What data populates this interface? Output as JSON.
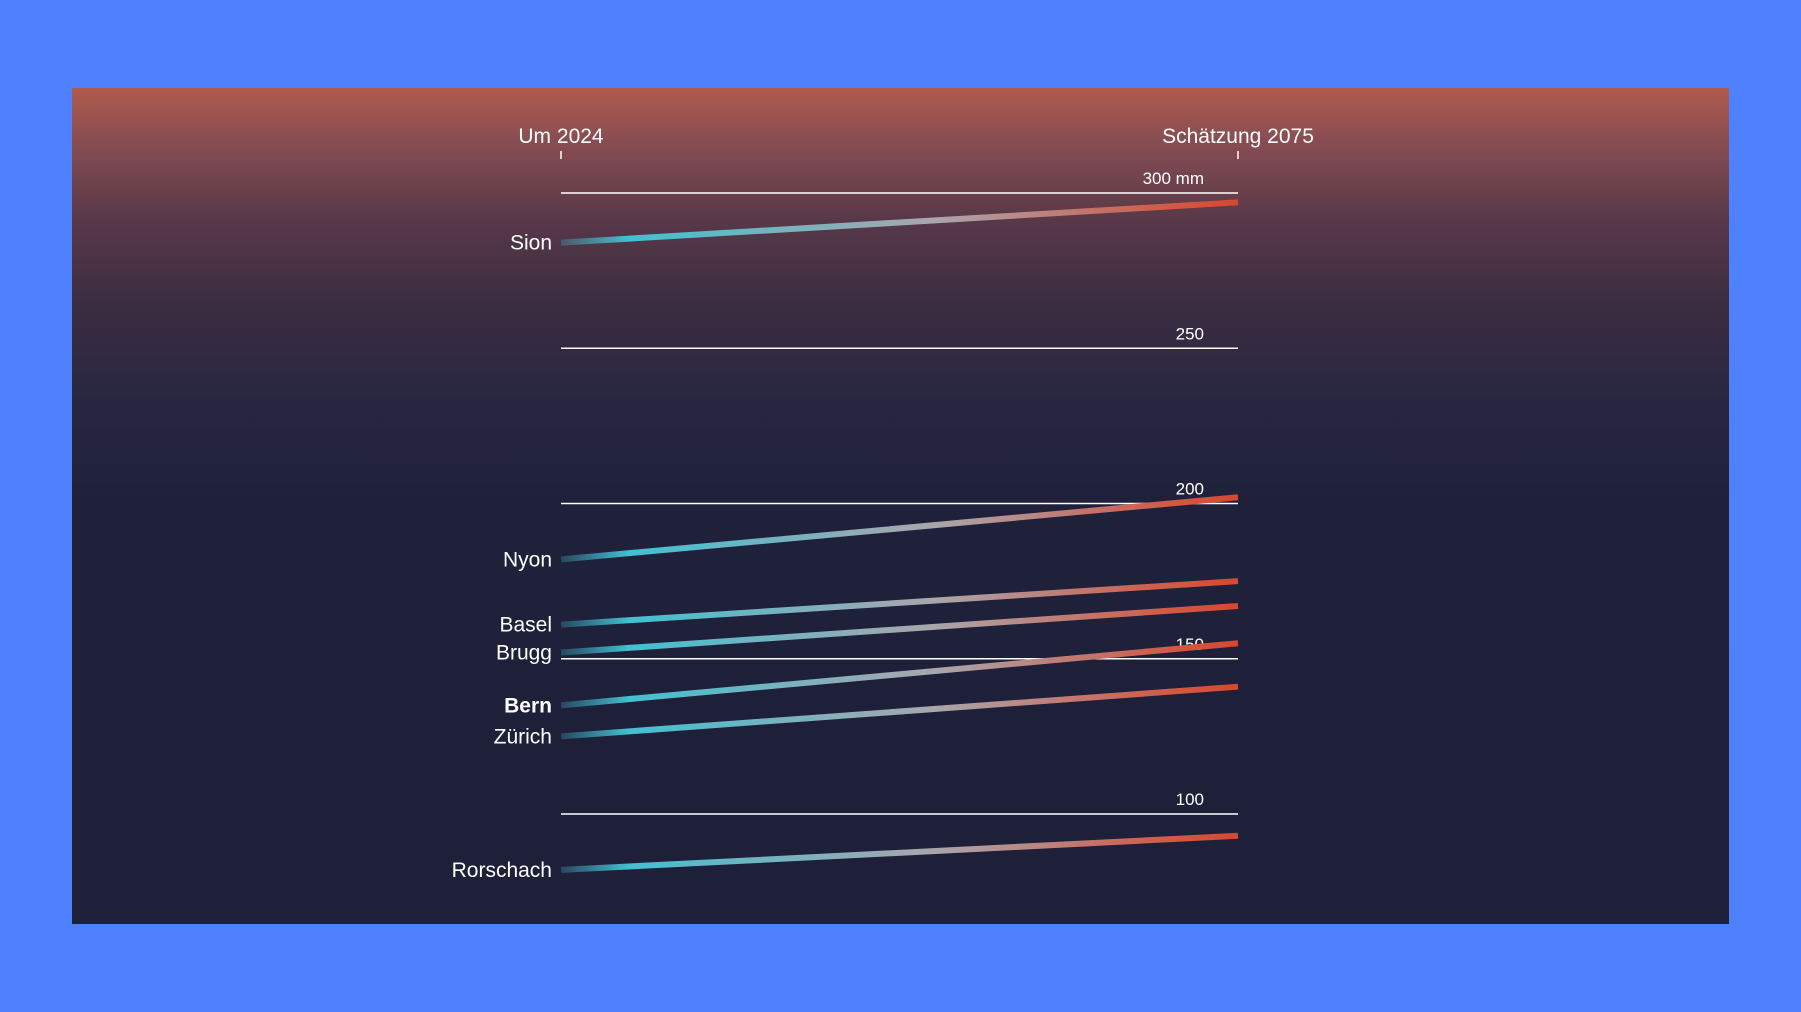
{
  "chart_data": {
    "type": "line",
    "columns": [
      "Um 2024",
      "Schätzung 2075"
    ],
    "unit": "mm",
    "ylim": [
      92,
      305
    ],
    "ticks": [
      {
        "value": 300,
        "label": "300 mm"
      },
      {
        "value": 250,
        "label": "250"
      },
      {
        "value": 200,
        "label": "200"
      },
      {
        "value": 150,
        "label": "150"
      },
      {
        "value": 100,
        "label": "100"
      }
    ],
    "series": [
      {
        "name": "Sion",
        "start": 284,
        "end": 297,
        "bold": false
      },
      {
        "name": "Nyon",
        "start": 182,
        "end": 202,
        "bold": false
      },
      {
        "name": "Basel",
        "start": 161,
        "end": 175,
        "bold": false
      },
      {
        "name": "Brugg",
        "start": 152,
        "end": 167,
        "bold": false
      },
      {
        "name": "Bern",
        "start": 135,
        "end": 155,
        "bold": true
      },
      {
        "name": "Zürich",
        "start": 125,
        "end": 141,
        "bold": false
      },
      {
        "name": "Rorschach",
        "start": 82,
        "end": 93,
        "bold": false
      }
    ],
    "colors": {
      "start": "#42c0d1",
      "middle": "#a9a6ad",
      "end": "#d8472f"
    }
  }
}
